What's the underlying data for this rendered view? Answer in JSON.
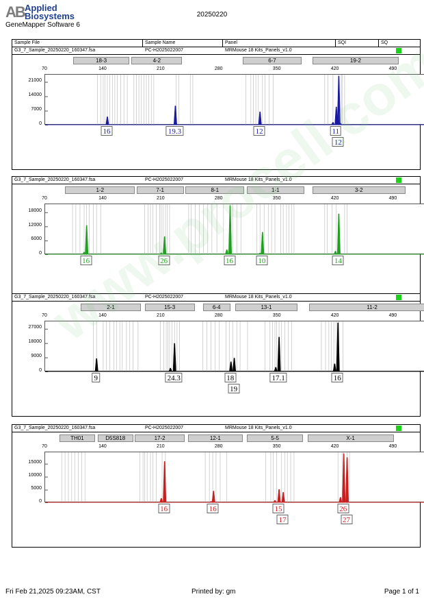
{
  "header": {
    "company_mark": "AB",
    "company_line1": "Applied",
    "company_line2": "Biosystems",
    "software": "GeneMapper Software 6",
    "date": "20250220"
  },
  "columns": {
    "sample_file": "Sample File",
    "sample_name": "Sample Name",
    "panel": "Panel",
    "sqi": "SQI",
    "sq": "SQ"
  },
  "colors": {
    "blue": "#1a1aa0",
    "green": "#20a020",
    "black": "#000000",
    "red": "#c81e1e",
    "ladder": "#c0c0c0",
    "sq_ok": "#19d219"
  },
  "footer": {
    "timestamp": "Fri Feb 21,2025 09:23AM, CST",
    "printed_by": "Printed by: gm",
    "page": "Page 1 of 1"
  },
  "watermark": "www.procell.com.cn",
  "chart_data": [
    {
      "type": "line",
      "dye": "blue",
      "sample_file": "G3_7_Sample_20250220_160347.fsa",
      "sample_name": "PC-H2025022007",
      "panel": "MRMouse 18 Kits_Panels_v1.0",
      "x_ticks": [
        70,
        140,
        210,
        280,
        350,
        420,
        490
      ],
      "y_ticks": [
        0,
        7000,
        14000,
        21000
      ],
      "xlim": [
        70,
        530
      ],
      "ylim": [
        0,
        24000
      ],
      "markers": [
        {
          "label": "18-3",
          "start": 105,
          "end": 172
        },
        {
          "label": "4-2",
          "start": 175,
          "end": 236
        },
        {
          "label": "6-7",
          "start": 309,
          "end": 380
        },
        {
          "label": "19-2",
          "start": 393,
          "end": 497
        }
      ],
      "peaks": [
        {
          "x": 145,
          "height": 4200,
          "label": "16"
        },
        {
          "x": 227,
          "height": 9500,
          "label": "19.3"
        },
        {
          "x": 329,
          "height": 6600,
          "label": "12"
        },
        {
          "x": 421,
          "height": 9000,
          "label": "11"
        },
        {
          "x": 424,
          "height": 24000,
          "label": "12",
          "label_row": 2
        }
      ],
      "stutters": [
        {
          "x": 417,
          "height": 1500
        },
        {
          "x": 426,
          "height": 1000
        }
      ],
      "ladder": [
        133,
        137,
        140,
        142,
        145,
        148,
        151,
        154,
        157,
        161,
        165,
        169,
        177,
        180,
        183,
        186,
        189,
        192,
        195,
        198,
        201,
        228,
        231,
        245,
        248,
        312,
        318,
        321,
        324,
        327,
        332,
        335,
        340,
        345,
        407,
        411,
        417,
        424,
        427,
        428,
        431
      ]
    },
    {
      "type": "line",
      "dye": "green",
      "sample_file": "G3_7_Sample_20250220_160347.fsa",
      "sample_name": "PC-H2025022007",
      "panel": "MRMouse 18 Kits_Panels_v1.0",
      "x_ticks": [
        70,
        140,
        210,
        280,
        350,
        420,
        490
      ],
      "y_ticks": [
        0,
        6000,
        12000,
        18000
      ],
      "xlim": [
        70,
        530
      ],
      "ylim": [
        0,
        21000
      ],
      "markers": [
        {
          "label": "1-2",
          "start": 95,
          "end": 179
        },
        {
          "label": "7-1",
          "start": 181,
          "end": 238
        },
        {
          "label": "8-1",
          "start": 240,
          "end": 311
        },
        {
          "label": "1-1",
          "start": 314,
          "end": 383
        },
        {
          "label": "3-2",
          "start": 393,
          "end": 505
        }
      ],
      "peaks": [
        {
          "x": 120,
          "height": 12500,
          "label": "16"
        },
        {
          "x": 214,
          "height": 7800,
          "label": "26"
        },
        {
          "x": 293,
          "height": 21000,
          "label": "16"
        },
        {
          "x": 332,
          "height": 9700,
          "label": "10"
        },
        {
          "x": 424,
          "height": 17500,
          "label": "14"
        }
      ],
      "stutters": [
        {
          "x": 117,
          "height": 1200
        },
        {
          "x": 210,
          "height": 900
        },
        {
          "x": 289,
          "height": 2200
        },
        {
          "x": 329,
          "height": 800
        },
        {
          "x": 420,
          "height": 1600
        }
      ],
      "ladder": [
        103,
        107,
        112,
        117,
        120,
        123,
        128,
        132,
        137,
        190,
        194,
        197,
        200,
        204,
        208,
        210,
        212,
        215,
        217,
        220,
        243,
        246,
        251,
        256,
        261,
        266,
        271,
        277,
        285,
        293,
        296,
        301,
        306,
        325,
        329,
        334,
        339,
        343,
        347,
        354,
        357,
        361,
        364,
        367,
        370,
        407,
        410,
        416,
        421,
        431,
        434
      ]
    },
    {
      "type": "line",
      "dye": "black",
      "sample_file": "G3_7_Sample_20250220_160347.fsa",
      "sample_name": "PC-H2025022007",
      "panel": "MRMouse 18 Kits_Panels_v1.0",
      "x_ticks": [
        70,
        140,
        210,
        280,
        350,
        420,
        490
      ],
      "y_ticks": [
        0,
        9000,
        18000,
        27000
      ],
      "xlim": [
        70,
        530
      ],
      "ylim": [
        0,
        31000
      ],
      "markers": [
        {
          "label": "2-1",
          "start": 114,
          "end": 186
        },
        {
          "label": "15-3",
          "start": 191,
          "end": 251
        },
        {
          "label": "6-4",
          "start": 261,
          "end": 294
        },
        {
          "label": "13-1",
          "start": 300,
          "end": 375
        },
        {
          "label": "11-2",
          "start": 389,
          "end": 541
        }
      ],
      "peaks": [
        {
          "x": 132,
          "height": 8500,
          "label": "9"
        },
        {
          "x": 226,
          "height": 18000,
          "label": "24.3"
        },
        {
          "x": 294,
          "height": 6500,
          "label": "18"
        },
        {
          "x": 298,
          "height": 8800,
          "label": "19",
          "label_row": 2
        },
        {
          "x": 352,
          "height": 22000,
          "label": "17.1"
        },
        {
          "x": 423,
          "height": 31000,
          "label": "16"
        }
      ],
      "stutters": [
        {
          "x": 221,
          "height": 2500
        },
        {
          "x": 348,
          "height": 3000
        },
        {
          "x": 419,
          "height": 5200
        }
      ],
      "ladder": [
        128,
        132,
        140,
        144,
        148,
        153,
        156,
        160,
        163,
        168,
        172,
        176,
        182,
        209,
        213,
        216,
        218,
        220,
        223,
        226,
        229,
        232,
        260,
        265,
        270,
        275,
        280,
        288,
        292,
        296,
        301,
        305,
        314,
        335,
        341,
        344,
        347,
        349,
        352,
        355,
        359,
        363,
        367,
        403,
        408,
        412,
        415,
        418,
        421,
        424,
        429
      ]
    },
    {
      "type": "line",
      "dye": "red",
      "sample_file": "G3_7_Sample_20250220_160347.fsa",
      "sample_name": "PC-H2025022007",
      "panel": "MRMouse 18 Kits_Panels_v1.0",
      "x_ticks": [
        70,
        140,
        210,
        280,
        350,
        420,
        490
      ],
      "y_ticks": [
        0,
        5000,
        10000,
        15000
      ],
      "xlim": [
        70,
        530
      ],
      "ylim": [
        0,
        19000
      ],
      "markers": [
        {
          "label": "TH01",
          "start": 88,
          "end": 131
        },
        {
          "label": "D5S818",
          "start": 134,
          "end": 177
        },
        {
          "label": "17-2",
          "start": 179,
          "end": 239
        },
        {
          "label": "12-1",
          "start": 243,
          "end": 309
        },
        {
          "label": "5-5",
          "start": 314,
          "end": 382
        },
        {
          "label": "X-1",
          "start": 387,
          "end": 491
        }
      ],
      "peaks": [
        {
          "x": 214,
          "height": 16000,
          "label": "16"
        },
        {
          "x": 273,
          "height": 4600,
          "label": "16"
        },
        {
          "x": 352,
          "height": 5200,
          "label": "15"
        },
        {
          "x": 357,
          "height": 4100,
          "label": "17",
          "label_row": 2
        },
        {
          "x": 430,
          "height": 19000,
          "label": "26"
        },
        {
          "x": 434,
          "height": 17500,
          "label": "27",
          "label_row": 2
        }
      ],
      "stutters": [
        {
          "x": 210,
          "height": 1800
        },
        {
          "x": 270,
          "height": 600
        },
        {
          "x": 347,
          "height": 1000
        },
        {
          "x": 426,
          "height": 2200
        }
      ],
      "ladder": [
        90,
        94,
        98,
        102,
        106,
        110,
        114,
        118,
        184,
        188,
        190,
        193,
        197,
        200,
        204,
        211,
        215,
        263,
        268,
        272,
        276,
        281,
        289,
        336,
        342,
        345,
        349,
        355,
        359,
        362,
        366,
        370,
        423,
        428,
        430,
        434,
        437
      ]
    }
  ]
}
